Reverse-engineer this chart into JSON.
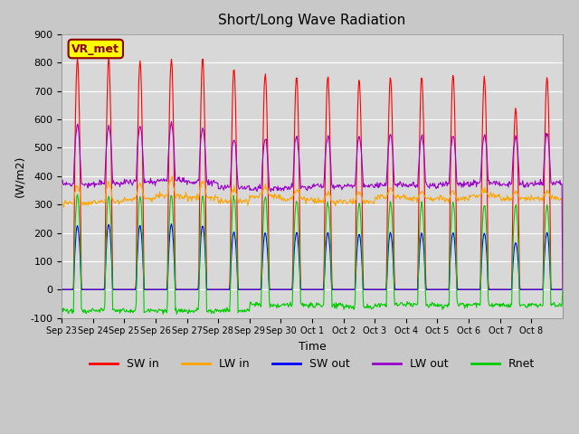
{
  "title": "Short/Long Wave Radiation",
  "xlabel": "Time",
  "ylabel": "(W/m2)",
  "ylim": [
    -100,
    900
  ],
  "yticks": [
    -100,
    0,
    100,
    200,
    300,
    400,
    500,
    600,
    700,
    800,
    900
  ],
  "xtick_labels": [
    "Sep 23",
    "Sep 24",
    "Sep 25",
    "Sep 26",
    "Sep 27",
    "Sep 28",
    "Sep 29",
    "Sep 30",
    "Oct 1",
    "Oct 2",
    "Oct 3",
    "Oct 4",
    "Oct 5",
    "Oct 6",
    "Oct 7",
    "Oct 8"
  ],
  "station_label": "VR_met",
  "colors": {
    "SW_in": "#ff0000",
    "LW_in": "#ffa500",
    "SW_out": "#0000ff",
    "LW_out": "#9900cc",
    "Rnet": "#00cc00"
  },
  "legend_labels": [
    "SW in",
    "LW in",
    "SW out",
    "LW out",
    "Rnet"
  ],
  "fig_bg_color": "#c8c8c8",
  "plot_bg_color": "#d8d8d8",
  "n_days": 16,
  "sw_in_peaks": [
    815,
    815,
    810,
    815,
    815,
    780,
    760,
    755,
    750,
    740,
    750,
    750,
    760,
    750,
    640,
    750
  ],
  "lw_out_peaks": [
    580,
    580,
    580,
    590,
    570,
    530,
    530,
    540,
    540,
    540,
    550,
    540,
    545,
    540,
    540,
    550
  ],
  "lw_in_base": [
    305,
    310,
    320,
    330,
    325,
    310,
    330,
    320,
    310,
    310,
    325,
    320,
    320,
    330,
    320,
    320
  ],
  "lw_in_day_bump": [
    60,
    65,
    50,
    55,
    60,
    45,
    30,
    30,
    30,
    30,
    30,
    25,
    25,
    25,
    20,
    25
  ],
  "lw_out_base": [
    370,
    375,
    380,
    385,
    380,
    360,
    355,
    360,
    365,
    365,
    370,
    365,
    370,
    375,
    370,
    375
  ],
  "sw_out_peaks": [
    225,
    230,
    225,
    230,
    225,
    205,
    200,
    200,
    200,
    195,
    200,
    200,
    200,
    200,
    165,
    200
  ],
  "rnet_peaks": [
    330,
    335,
    325,
    335,
    330,
    325,
    330,
    315,
    310,
    300,
    305,
    300,
    305,
    300,
    300,
    300
  ],
  "rnet_night": [
    -75,
    -75,
    -75,
    -75,
    -75,
    -75,
    -55,
    -55,
    -55,
    -60,
    -55,
    -55,
    -55,
    -55,
    -55,
    -55
  ],
  "grid_color": "white",
  "grid_linewidth": 0.8
}
